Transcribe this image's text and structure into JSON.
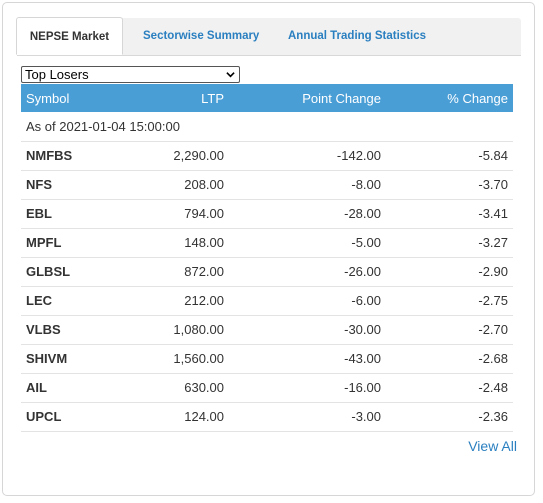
{
  "tabs": [
    {
      "label": "NEPSE Market",
      "active": true
    },
    {
      "label": "Sectorwise Summary",
      "active": false
    },
    {
      "label": "Annual Trading Statistics",
      "active": false
    }
  ],
  "filter": {
    "selected": "Top Losers"
  },
  "table": {
    "headers": [
      "Symbol",
      "LTP",
      "Point Change",
      "% Change"
    ],
    "as_of": "As of 2021-01-04 15:00:00",
    "rows": [
      [
        "NMFBS",
        "2,290.00",
        "-142.00",
        "-5.84"
      ],
      [
        "NFS",
        "208.00",
        "-8.00",
        "-3.70"
      ],
      [
        "EBL",
        "794.00",
        "-28.00",
        "-3.41"
      ],
      [
        "MPFL",
        "148.00",
        "-5.00",
        "-3.27"
      ],
      [
        "GLBSL",
        "872.00",
        "-26.00",
        "-2.90"
      ],
      [
        "LEC",
        "212.00",
        "-6.00",
        "-2.75"
      ],
      [
        "VLBS",
        "1,080.00",
        "-30.00",
        "-2.70"
      ],
      [
        "SHIVM",
        "1,560.00",
        "-43.00",
        "-2.68"
      ],
      [
        "AIL",
        "630.00",
        "-16.00",
        "-2.48"
      ],
      [
        "UPCL",
        "124.00",
        "-3.00",
        "-2.36"
      ]
    ]
  },
  "footer": {
    "view_all": "View All"
  },
  "colors": {
    "accent": "#4a9ed6",
    "link": "#2a7fc0"
  }
}
